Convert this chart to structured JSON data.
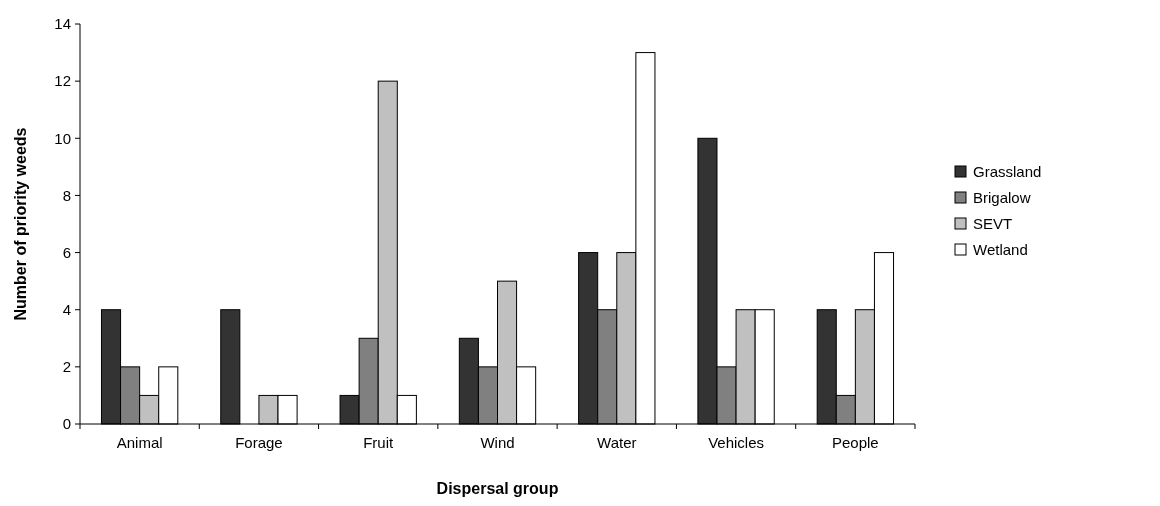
{
  "chart_data": {
    "type": "bar",
    "xlabel": "Dispersal group",
    "ylabel": "Number of priority weeds",
    "categories": [
      "Animal",
      "Forage",
      "Fruit",
      "Wind",
      "Water",
      "Vehicles",
      "People"
    ],
    "series": [
      {
        "name": "Grassland",
        "color": "#333333",
        "values": [
          4,
          4,
          1,
          3,
          6,
          10,
          4
        ]
      },
      {
        "name": "Brigalow",
        "color": "#808080",
        "values": [
          2,
          0,
          3,
          2,
          4,
          2,
          1
        ]
      },
      {
        "name": "SEVT",
        "color": "#c0c0c0",
        "values": [
          1,
          1,
          12,
          5,
          6,
          4,
          4
        ]
      },
      {
        "name": "Wetland",
        "color": "#ffffff",
        "values": [
          2,
          1,
          1,
          2,
          13,
          4,
          6
        ]
      }
    ],
    "ylim": [
      0,
      14
    ],
    "yticks": [
      0,
      2,
      4,
      6,
      8,
      10,
      12,
      14
    ],
    "grid": false,
    "legend": "right"
  }
}
